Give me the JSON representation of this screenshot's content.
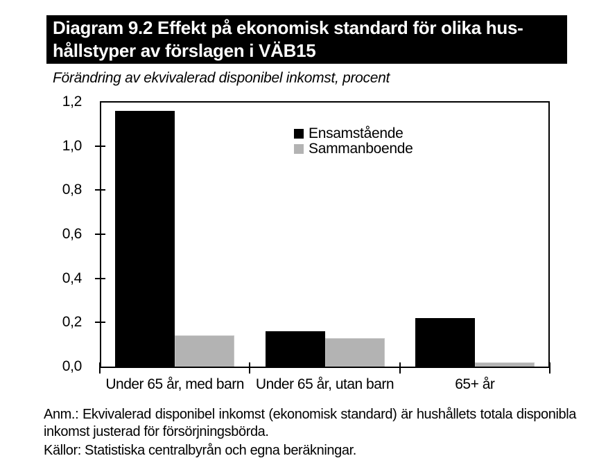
{
  "title": {
    "lines": [
      "Diagram 9.2 Effekt på ekonomisk standard för olika hus-",
      "hållstyper av förslagen i VÄB15"
    ]
  },
  "subtitle": "Förändring av ekvivalerad disponibel inkomst, procent",
  "chart_data": {
    "type": "bar",
    "categories": [
      "Under 65 år, med barn",
      "Under 65 år, utan barn",
      "65+ år"
    ],
    "series": [
      {
        "name": "Ensamstående",
        "color": "#000000",
        "values": [
          1.16,
          0.16,
          0.22
        ]
      },
      {
        "name": "Sammanboende",
        "color": "#b3b3b3",
        "values": [
          0.14,
          0.13,
          0.02
        ]
      }
    ],
    "title": "Diagram 9.2 Effekt på ekonomisk standard för olika hushållstyper av förslagen i VÄB15",
    "subtitle": "Förändring av ekvivalerad disponibel inkomst, procent",
    "xlabel": "",
    "ylabel": "",
    "ylim": [
      0,
      1.2
    ],
    "ytick_step": 0.2,
    "ytick_labels": [
      "0,0",
      "0,2",
      "0,4",
      "0,6",
      "0,8",
      "1,0",
      "1,2"
    ],
    "grid": false,
    "legend_position": "upper-center-inside"
  },
  "footnotes": {
    "anm": "Anm.: Ekvivalerad disponibel inkomst (ekonomisk standard) är hushållets totala disponibla inkomst justerad för försörjningsbörda.",
    "kallor": "Källor: Statistiska centralbyrån och egna beräkningar."
  },
  "colors": {
    "title_bg": "#000000",
    "title_fg": "#ffffff",
    "bar_black": "#000000",
    "bar_gray": "#b3b3b3",
    "axis": "#000000",
    "background": "#ffffff"
  }
}
